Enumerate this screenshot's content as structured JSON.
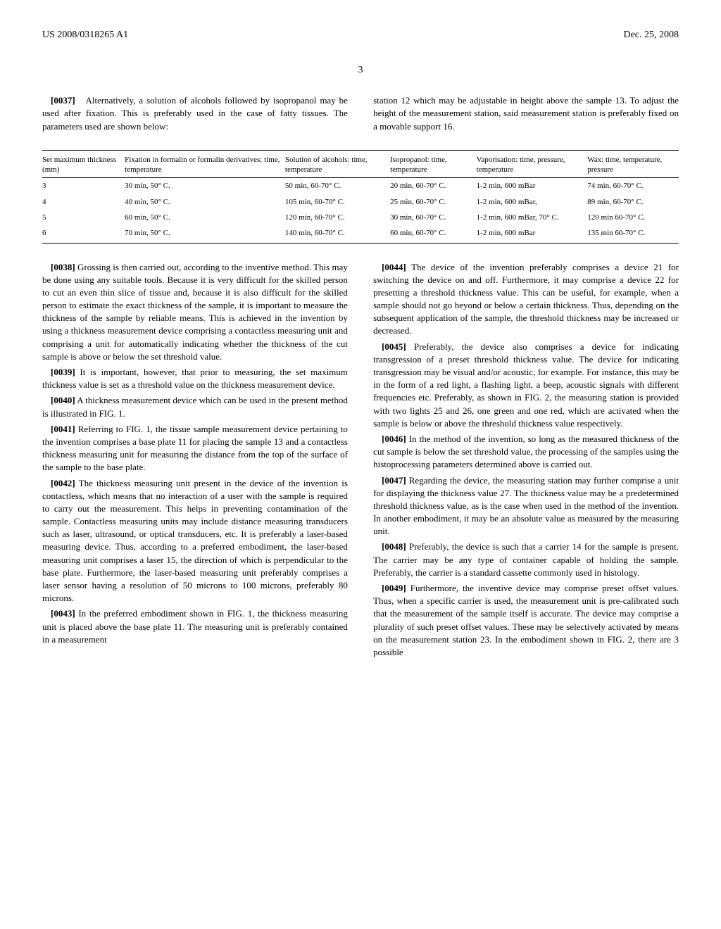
{
  "header": {
    "left": "US 2008/0318265 A1",
    "right": "Dec. 25, 2008"
  },
  "page_number": "3",
  "intro_para": {
    "num": "[0037]",
    "text": "Alternatively, a solution of alcohols followed by isopropanol may be used after fixation. This is preferably used in the case of fatty tissues. The parameters used are shown below:"
  },
  "intro_side": "station 12 which may be adjustable in height above the sample 13. To adjust the height of the measurement station, said measurement station is preferably fixed on a movable support 16.",
  "table": {
    "columns": [
      "Set maximum thickness (mm)",
      "Fixation in formalin or formalin derivatives: time, temperature",
      "Solution of alcohols: time, temperature",
      "Isopropanol: time, temperature",
      "Vaporisation: time, pressure, temperature",
      "Wax: time, temperature, pressure"
    ],
    "rows": [
      [
        "3",
        "30 min, 50° C.",
        "50 min, 60-70° C.",
        "20 min, 60-70° C.",
        "1-2 min, 600 mBar",
        "74 min, 60-70° C."
      ],
      [
        "4",
        "40 min, 50° C.",
        "105 min, 60-70° C.",
        "25 min, 60-70° C.",
        "1-2 min, 600 mBar,",
        "89 min, 60-70° C."
      ],
      [
        "5",
        "60 min, 50° C.",
        "120 min, 60-70° C.",
        "30 min, 60-70° C.",
        "1-2 min, 600 mBar, 70° C.",
        "120 min 60-70° C."
      ],
      [
        "6",
        "70 min, 50° C.",
        "140 min, 60-70° C.",
        "60 min, 60-70° C.",
        "1-2 min, 600 mBar",
        "135 min 60-70° C."
      ]
    ]
  },
  "left_paras": [
    {
      "num": "[0038]",
      "text": "Grossing is then carried out, according to the inventive method. This may be done using any suitable tools. Because it is very difficult for the skilled person to cut an even thin slice of tissue and, because it is also difficult for the skilled person to estimate the exact thickness of the sample, it is important to measure the thickness of the sample by reliable means. This is achieved in the invention by using a thickness measurement device comprising a contactless measuring unit and comprising a unit for automatically indicating whether the thickness of the cut sample is above or below the set threshold value."
    },
    {
      "num": "[0039]",
      "text": "It is important, however, that prior to measuring, the set maximum thickness value is set as a threshold value on the thickness measurement device."
    },
    {
      "num": "[0040]",
      "text": "A thickness measurement device which can be used in the present method is illustrated in FIG. 1."
    },
    {
      "num": "[0041]",
      "text": "Referring to FIG. 1, the tissue sample measurement device pertaining to the invention comprises a base plate 11 for placing the sample 13 and a contactless thickness measuring unit for measuring the distance from the top of the surface of the sample to the base plate."
    },
    {
      "num": "[0042]",
      "text": "The thickness measuring unit present in the device of the invention is contactless, which means that no interaction of a user with the sample is required to carry out the measurement. This helps in preventing contamination of the sample. Contactless measuring units may include distance measuring transducers such as laser, ultrasound, or optical transducers, etc. It is preferably a laser-based measuring device. Thus, according to a preferred embodiment, the laser-based measuring unit comprises a laser 15, the direction of which is perpendicular to the base plate. Furthermore, the laser-based measuring unit preferably comprises a laser sensor having a resolution of 50 microns to 100 microns, preferably 80 microns."
    },
    {
      "num": "[0043]",
      "text": "In the preferred embodiment shown in FIG. 1, the thickness measuring unit is placed above the base plate 11. The measuring unit is preferably contained in a measurement"
    }
  ],
  "right_paras": [
    {
      "num": "[0044]",
      "text": "The device of the invention preferably comprises a device 21 for switching the device on and off. Furthermore, it may comprise a device 22 for presetting a threshold thickness value. This can be useful, for example, when a sample should not go beyond or below a certain thickness. Thus, depending on the subsequent application of the sample, the threshold thickness may be increased or decreased."
    },
    {
      "num": "[0045]",
      "text": "Preferably, the device also comprises a device for indicating transgression of a preset threshold thickness value. The device for indicating transgression may be visual and/or acoustic, for example. For instance, this may be in the form of a red light, a flashing light, a beep, acoustic signals with different frequencies etc. Preferably, as shown in FIG. 2, the measuring station is provided with two lights 25 and 26, one green and one red, which are activated when the sample is below or above the threshold thickness value respectively."
    },
    {
      "num": "[0046]",
      "text": "In the method of the invention, so long as the measured thickness of the cut sample is below the set threshold value, the processing of the samples using the histoprocessing parameters determined above is carried out."
    },
    {
      "num": "[0047]",
      "text": "Regarding the device, the measuring station may further comprise a unit for displaying the thickness value 27. The thickness value may be a predetermined threshold thickness value, as is the case when used in the method of the invention. In another embodiment, it may be an absolute value as measured by the measuring unit."
    },
    {
      "num": "[0048]",
      "text": "Preferably, the device is such that a carrier 14 for the sample is present. The carrier may be any type of container capable of holding the sample. Preferably, the carrier is a standard cassette commonly used in histology."
    },
    {
      "num": "[0049]",
      "text": "Furthermore, the inventive device may comprise preset offset values. Thus, when a specific carrier is used, the measurement unit is pre-calibrated such that the measurement of the sample itself is accurate. The device may comprise a plurality of such preset offset values. These may be selectively activated by means on the measurement station 23. In the embodiment shown in FIG. 2, there are 3 possible"
    }
  ]
}
